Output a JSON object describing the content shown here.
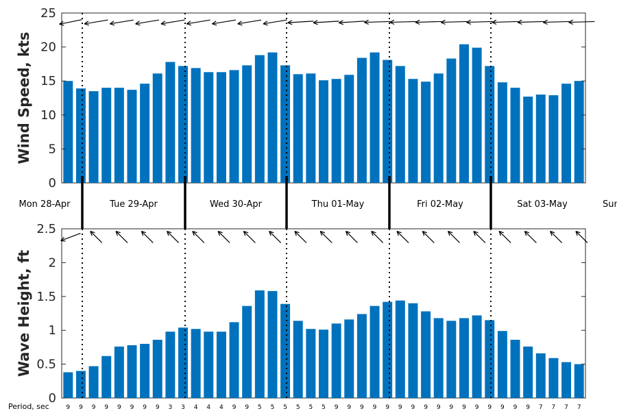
{
  "chart_data": [
    {
      "type": "bar",
      "ylabel": "Wind Speed, kts",
      "ylim": [
        0,
        25
      ],
      "yticks": [
        "0",
        "5",
        "10",
        "15",
        "20",
        "25"
      ],
      "color": "#0072BD",
      "values": [
        15.0,
        13.9,
        13.5,
        14.0,
        14.0,
        13.7,
        14.6,
        16.1,
        17.8,
        17.2,
        16.9,
        16.3,
        16.3,
        16.6,
        17.3,
        18.8,
        19.2,
        17.3,
        16.0,
        16.1,
        15.1,
        15.3,
        15.9,
        18.4,
        19.2,
        18.1,
        17.2,
        15.3,
        14.9,
        16.1,
        18.3,
        20.4,
        19.9,
        17.2,
        14.8,
        14.0,
        12.7,
        13.0,
        12.9,
        14.6,
        15.0
      ],
      "direction_arrows": "wind direction arrows shown above bars"
    },
    {
      "type": "bar",
      "ylabel": "Wave Height, ft",
      "ylim": [
        0,
        2.5
      ],
      "yticks": [
        "0",
        "0.5",
        "1",
        "1.5",
        "2",
        "2.5"
      ],
      "color": "#0072BD",
      "values": [
        0.38,
        0.4,
        0.47,
        0.62,
        0.76,
        0.78,
        0.8,
        0.86,
        0.98,
        1.04,
        1.02,
        0.98,
        0.98,
        1.12,
        1.36,
        1.59,
        1.58,
        1.39,
        1.14,
        1.02,
        1.01,
        1.1,
        1.16,
        1.24,
        1.36,
        1.42,
        1.44,
        1.4,
        1.28,
        1.18,
        1.14,
        1.18,
        1.22,
        1.15,
        0.99,
        0.86,
        0.76,
        0.66,
        0.59,
        0.53,
        0.5
      ],
      "direction_arrows": "wave direction arrows shown above bars"
    }
  ],
  "days": [
    "Mon 28-Apr",
    "Tue 29-Apr",
    "Wed 30-Apr",
    "Thu 01-May",
    "Fri 02-May",
    "Sat 03-May",
    "Sun"
  ],
  "period_label": "Period, sec",
  "periods": [
    "9",
    "9",
    "9",
    "9",
    "9",
    "9",
    "9",
    "9",
    "3",
    "3",
    "4",
    "4",
    "4",
    "9",
    "9",
    "5",
    "5",
    "5",
    "5",
    "5",
    "5",
    "9",
    "9",
    "9",
    "9",
    "9",
    "9",
    "9",
    "9",
    "9",
    "9",
    "9",
    "9",
    "9",
    "9",
    "9",
    "9",
    "7",
    "7",
    "7",
    "7"
  ],
  "wind_arrow_angles": [
    210,
    210,
    205,
    205,
    205,
    205,
    205,
    205,
    205,
    205,
    205,
    205,
    205,
    205,
    205,
    205,
    205,
    190,
    190,
    190,
    190,
    190,
    190,
    190,
    185,
    185,
    185,
    185,
    185,
    185,
    185,
    185,
    185,
    185,
    185,
    185,
    185,
    185,
    185,
    185,
    185
  ],
  "wave_arrow_angles": [
    210,
    210,
    210,
    210,
    210,
    210,
    210,
    210,
    210,
    210,
    210,
    210,
    210,
    210,
    210,
    210,
    210,
    210,
    210,
    210,
    210,
    210,
    210,
    210,
    210,
    210,
    210,
    210,
    210,
    210,
    210,
    210,
    210,
    210,
    210,
    210,
    210,
    210,
    210,
    210,
    210
  ]
}
